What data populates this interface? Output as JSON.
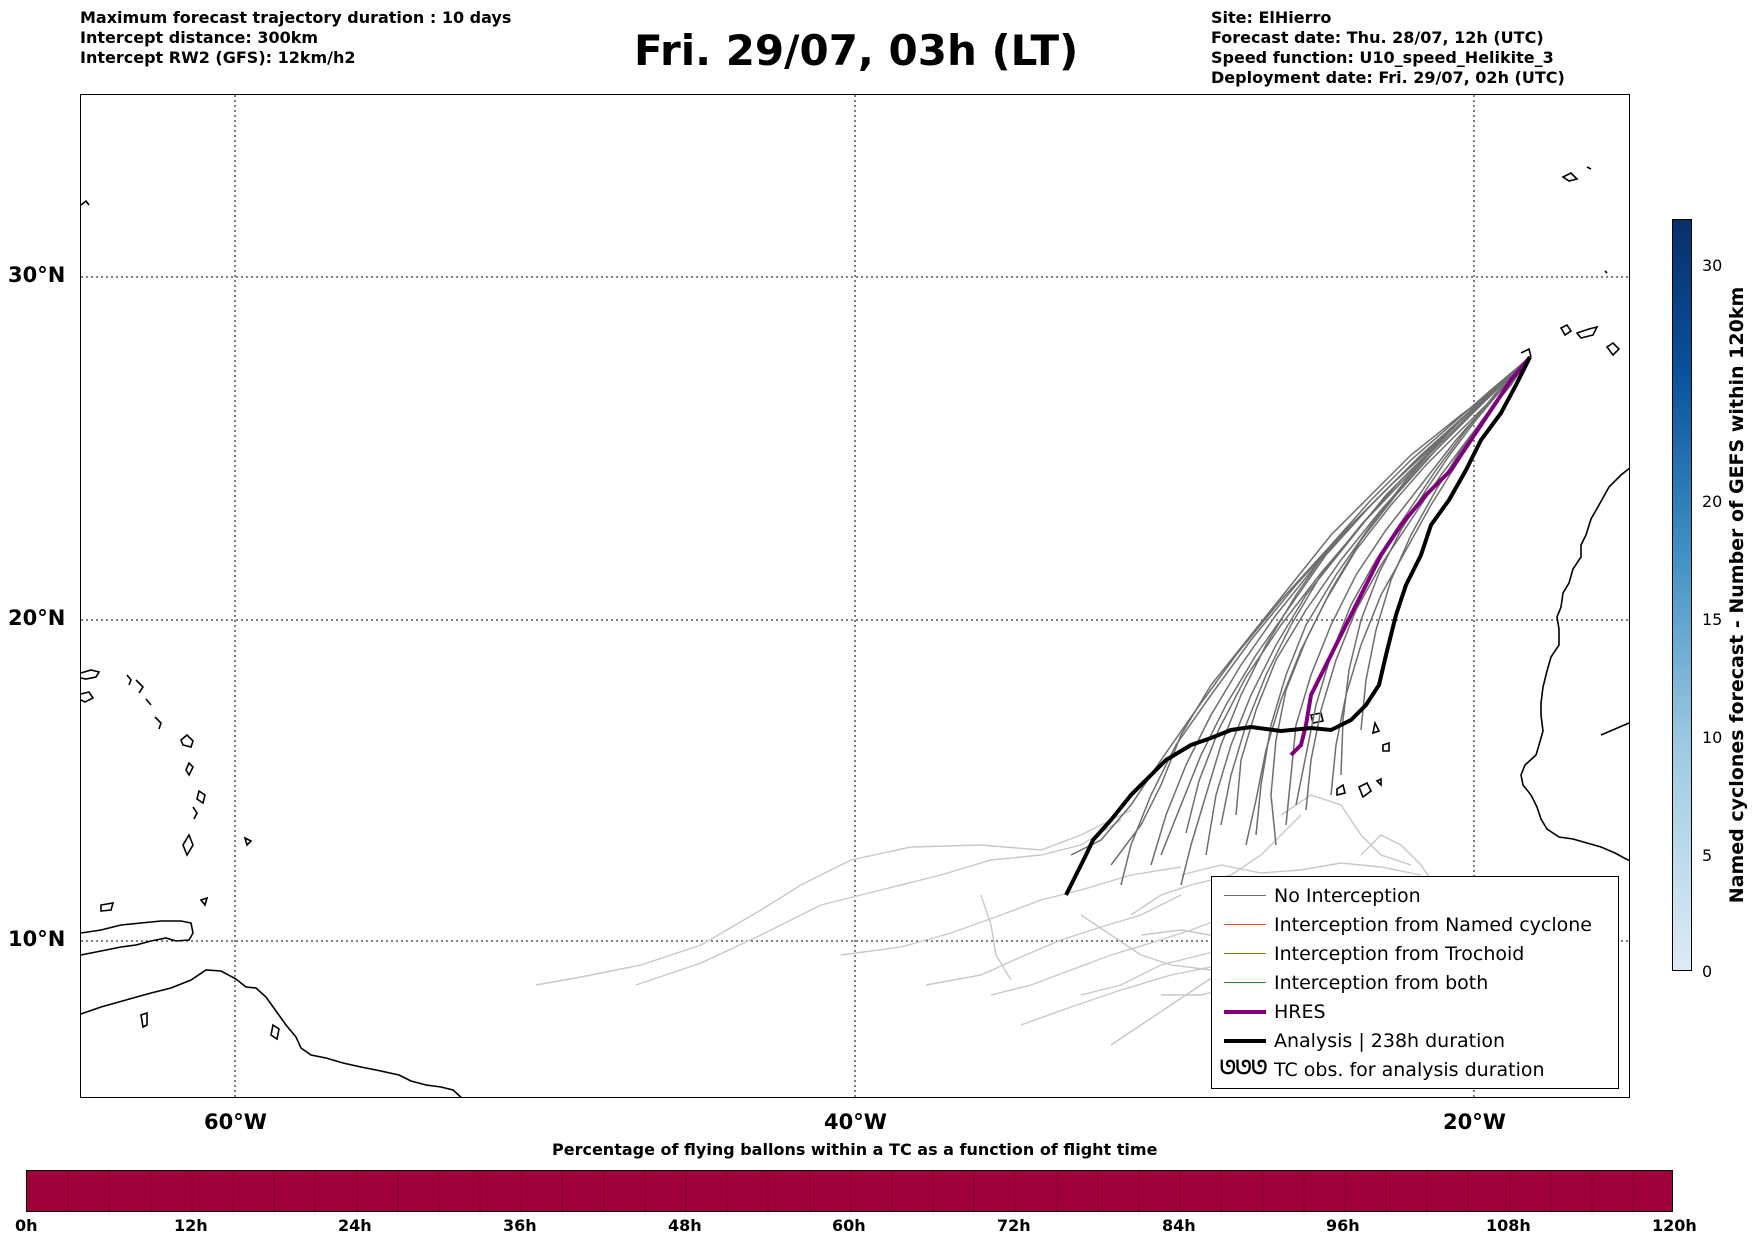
{
  "header": {
    "left_lines": [
      "Maximum forecast trajectory duration : 10 days",
      "Intercept distance: 300km",
      "Intercept RW2 (GFS):  12km/h2"
    ],
    "title": "Fri. 29/07, 03h (LT)",
    "right_lines": [
      "Site: ElHierro",
      "Forecast date: Thu. 28/07, 12h (UTC)",
      "Speed function: U10_speed_Helikite_3",
      "Deployment date: Fri. 29/07, 02h (UTC)"
    ]
  },
  "map": {
    "lat_labels": [
      "30°N",
      "20°N",
      "10°N"
    ],
    "lon_labels": [
      "60°W",
      "40°W",
      "20°W"
    ],
    "colors": {
      "no_interception": "#6e6e6e",
      "faded_trajectory": "#c8c8c8",
      "named_cyclone": "#e8581c",
      "trochoid": "#808000",
      "both": "#228b22",
      "hres": "#800080",
      "analysis": "#000000"
    }
  },
  "legend": {
    "items": [
      {
        "label": "No Interception",
        "icon": "thin-gray-line"
      },
      {
        "label": "Interception from Named cyclone",
        "icon": "thin-orange-line"
      },
      {
        "label": "Interception from Trochoid",
        "icon": "thin-olive-line"
      },
      {
        "label": "Interception from both",
        "icon": "thin-green-line"
      },
      {
        "label": "HRES",
        "icon": "thick-purple-line"
      },
      {
        "label": "Analysis | 238h duration",
        "icon": "thick-black-line"
      },
      {
        "label": "TC obs. for analysis duration",
        "icon": "tropical-cyclone-symbols",
        "symbol": "ᘎᘎᘎ"
      }
    ]
  },
  "right_colorbar": {
    "label": "Named cyclones forecast - Number of GEFS within 120km",
    "ticks": [
      "0",
      "5",
      "10",
      "15",
      "20",
      "30"
    ]
  },
  "bottom_colorbar": {
    "title": "Percentage of flying ballons within a TC as a function of flight time",
    "ticks": [
      "0h",
      "12h",
      "24h",
      "36h",
      "48h",
      "60h",
      "72h",
      "84h",
      "96h",
      "108h",
      "120h"
    ],
    "fill_color": "#9e003a"
  }
}
